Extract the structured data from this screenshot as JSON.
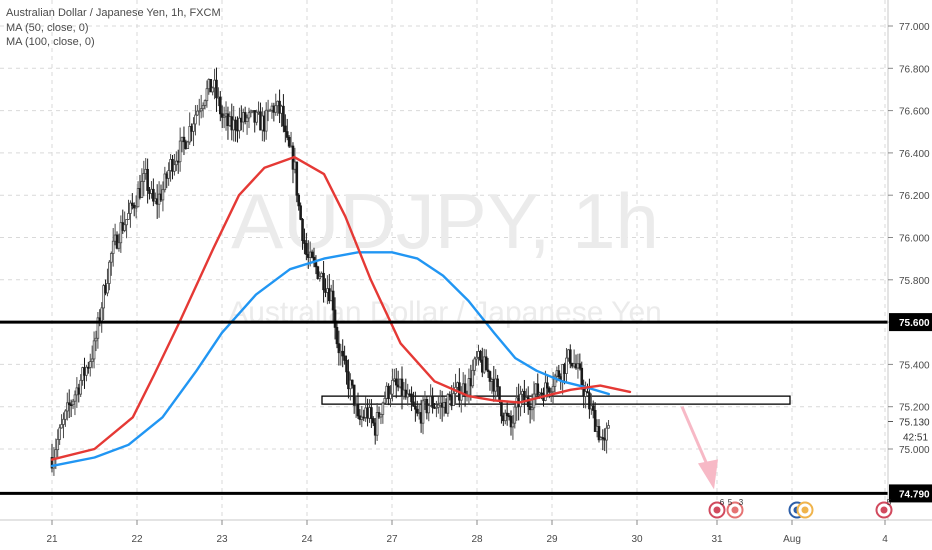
{
  "legend": {
    "title": "Australian Dollar / Japanese Yen, 1h, FXCM",
    "ma50": "MA (50, close, 0)",
    "ma100": "MA (100, close, 0)"
  },
  "watermark": {
    "symbol": "AUDJPY, 1h",
    "name": "Australian Dollar / Japanese Yen"
  },
  "colors": {
    "up": "#4a4a4a",
    "down": "#1a1a1a",
    "ma50": "#e53935",
    "ma100": "#2196f3",
    "arrow": "#f7b9c6",
    "grid": "#d9d9d9"
  },
  "price_axis": {
    "labels": [
      "77.000",
      "76.800",
      "76.600",
      "76.400",
      "76.200",
      "76.000",
      "75.800",
      "75.600",
      "75.400",
      "75.200",
      "75.000"
    ],
    "current_price": "75.130",
    "countdown": "42:51"
  },
  "time_axis": {
    "labels": [
      "21",
      "22",
      "23",
      "24",
      "27",
      "28",
      "29",
      "30",
      "31",
      "Aug",
      "4"
    ]
  },
  "events": {
    "e1": "6",
    "e2": "5",
    "e3": "3",
    "e4": "5"
  },
  "chart_data": {
    "type": "candlestick",
    "timeframe": "1h",
    "ylim": [
      74.7,
      77.1
    ],
    "grid": true,
    "series": [
      {
        "name": "MA (50, close, 0)"
      },
      {
        "name": "MA (100, close, 0)"
      }
    ],
    "levels": [
      {
        "price": 75.6,
        "label": "75.600"
      },
      {
        "price": 74.79,
        "label": "74.790"
      }
    ],
    "zone": {
      "from": 75.22,
      "to": 75.25
    },
    "projection": {
      "direction": "down",
      "to": 74.79
    },
    "ma50": [
      [
        0,
        74.95
      ],
      [
        0.5,
        75.0
      ],
      [
        0.95,
        75.15
      ],
      [
        1.2,
        75.35
      ],
      [
        1.5,
        75.6
      ],
      [
        1.9,
        75.95
      ],
      [
        2.2,
        76.2
      ],
      [
        2.5,
        76.33
      ],
      [
        2.85,
        76.38
      ],
      [
        3.2,
        76.3
      ],
      [
        3.45,
        76.1
      ],
      [
        3.75,
        75.8
      ],
      [
        4.1,
        75.5
      ],
      [
        4.5,
        75.32
      ],
      [
        4.9,
        75.25
      ],
      [
        5.2,
        75.23
      ],
      [
        5.5,
        75.22
      ],
      [
        5.8,
        75.25
      ],
      [
        6.1,
        75.28
      ],
      [
        6.45,
        75.3
      ],
      [
        6.8,
        75.27
      ]
    ],
    "ma100": [
      [
        0,
        74.92
      ],
      [
        0.5,
        74.96
      ],
      [
        0.9,
        75.02
      ],
      [
        1.3,
        75.15
      ],
      [
        1.7,
        75.37
      ],
      [
        2.0,
        75.55
      ],
      [
        2.4,
        75.73
      ],
      [
        2.8,
        75.85
      ],
      [
        3.2,
        75.9
      ],
      [
        3.6,
        75.93
      ],
      [
        4.0,
        75.93
      ],
      [
        4.3,
        75.9
      ],
      [
        4.6,
        75.82
      ],
      [
        4.9,
        75.7
      ],
      [
        5.2,
        75.55
      ],
      [
        5.45,
        75.43
      ],
      [
        5.7,
        75.37
      ],
      [
        6.0,
        75.32
      ],
      [
        6.3,
        75.29
      ],
      [
        6.55,
        75.26
      ]
    ],
    "candles": [
      [
        0,
        74.96
      ],
      [
        0.1,
        75.08
      ],
      [
        0.2,
        75.2
      ],
      [
        0.3,
        75.29
      ],
      [
        0.4,
        75.38
      ],
      [
        0.5,
        75.48
      ],
      [
        0.6,
        75.72
      ],
      [
        0.7,
        75.92
      ],
      [
        0.8,
        76.04
      ],
      [
        0.9,
        76.1
      ],
      [
        1.0,
        76.2
      ],
      [
        1.1,
        76.28
      ],
      [
        1.2,
        76.15
      ],
      [
        1.3,
        76.22
      ],
      [
        1.4,
        76.35
      ],
      [
        1.55,
        76.44
      ],
      [
        1.7,
        76.6
      ],
      [
        1.8,
        76.68
      ],
      [
        1.9,
        76.72
      ],
      [
        2.0,
        76.57
      ],
      [
        2.1,
        76.52
      ],
      [
        2.2,
        76.55
      ],
      [
        2.35,
        76.56
      ],
      [
        2.5,
        76.54
      ],
      [
        2.6,
        76.62
      ],
      [
        2.7,
        76.59
      ],
      [
        2.75,
        76.45
      ],
      [
        2.85,
        76.35
      ],
      [
        2.9,
        76.15
      ],
      [
        3.0,
        75.9
      ],
      [
        3.1,
        75.86
      ],
      [
        3.2,
        75.8
      ],
      [
        3.3,
        75.72
      ],
      [
        3.35,
        75.52
      ],
      [
        3.45,
        75.36
      ],
      [
        3.55,
        75.25
      ],
      [
        3.6,
        75.12
      ],
      [
        3.7,
        75.18
      ],
      [
        3.8,
        75.1
      ],
      [
        3.9,
        75.24
      ],
      [
        4.0,
        75.3
      ],
      [
        4.1,
        75.28
      ],
      [
        4.2,
        75.22
      ],
      [
        4.3,
        75.15
      ],
      [
        4.45,
        75.22
      ],
      [
        4.6,
        75.2
      ],
      [
        4.8,
        75.28
      ],
      [
        4.9,
        75.3
      ],
      [
        5.0,
        75.42
      ],
      [
        5.1,
        75.38
      ],
      [
        5.2,
        75.32
      ],
      [
        5.3,
        75.18
      ],
      [
        5.4,
        75.1
      ],
      [
        5.5,
        75.24
      ],
      [
        5.6,
        75.22
      ],
      [
        5.7,
        75.27
      ],
      [
        5.8,
        75.28
      ],
      [
        5.9,
        75.33
      ],
      [
        6.0,
        75.38
      ],
      [
        6.1,
        75.44
      ],
      [
        6.2,
        75.35
      ],
      [
        6.3,
        75.23
      ],
      [
        6.4,
        75.12
      ],
      [
        6.5,
        75.0
      ],
      [
        6.55,
        75.13
      ]
    ]
  }
}
